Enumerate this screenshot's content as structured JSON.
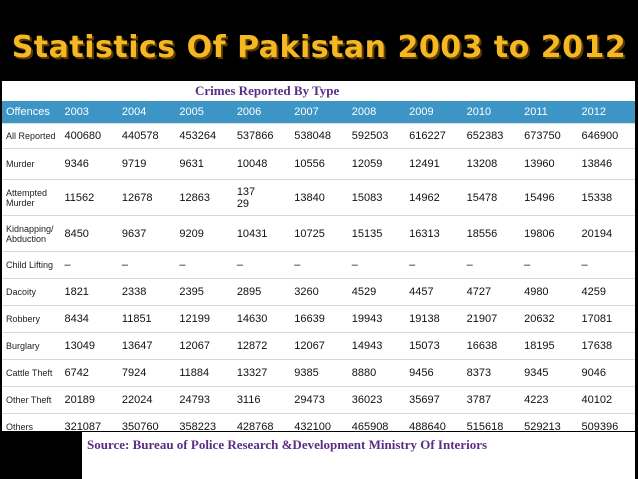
{
  "slide": {
    "title": "Statistics Of Pakistan 2003 to 2012",
    "subtitle": "Crimes Reported By Type",
    "source": "Source: Bureau of Police Research &Development Ministry Of Interiors"
  },
  "table": {
    "headers": [
      "Offences",
      "2003",
      "2004",
      "2005",
      "2006",
      "2007",
      "2008",
      "2009",
      "2010",
      "2011",
      "2012"
    ],
    "rows": [
      [
        "All Reported",
        "400680",
        "440578",
        "453264",
        "537866",
        "538048",
        "592503",
        "616227",
        "652383",
        "673750",
        "646900"
      ],
      [
        "Murder",
        "9346",
        "9719",
        "9631",
        "10048",
        "10556",
        "12059",
        "12491",
        "13208",
        "13960",
        "13846"
      ],
      [
        "Attempted Murder",
        "11562",
        "12678",
        "12863",
        "137 29",
        "13840",
        "15083",
        "14962",
        "15478",
        "15496",
        "15338"
      ],
      [
        "Kidnapping/ Abduction",
        "8450",
        "9637",
        "9209",
        "10431",
        "10725",
        "15135",
        "16313",
        "18556",
        "19806",
        "20194"
      ],
      [
        "Child Lifting",
        "–",
        "–",
        "–",
        "–",
        "–",
        "–",
        "–",
        "–",
        "–",
        "–"
      ],
      [
        "Dacoity",
        "1821",
        "2338",
        "2395",
        "2895",
        "3260",
        "4529",
        "4457",
        "4727",
        "4980",
        "4259"
      ],
      [
        "Robbery",
        "8434",
        "11851",
        "12199",
        "14630",
        "16639",
        "19943",
        "19138",
        "21907",
        "20632",
        "17081"
      ],
      [
        "Burglary",
        "13049",
        "13647",
        "12067",
        "12872",
        "12067",
        "14943",
        "15073",
        "16638",
        "18195",
        "17638"
      ],
      [
        "Cattle Theft",
        "6742",
        "7924",
        "11884",
        "13327",
        "9385",
        "8880",
        "9456",
        "8373",
        "9345",
        "9046"
      ],
      [
        "Other Theft",
        "20189",
        "22024",
        "24793",
        "3116",
        "29473",
        "36023",
        "35697",
        "3787",
        "4223",
        "40102"
      ],
      [
        "Others",
        "321087",
        "350760",
        "358223",
        "428768",
        "432100",
        "465908",
        "488640",
        "515618",
        "529213",
        "509396"
      ]
    ]
  },
  "colors": {
    "title": "#f5b722",
    "subtitle": "#5b2d86",
    "header_bg": "#3d95c6"
  }
}
